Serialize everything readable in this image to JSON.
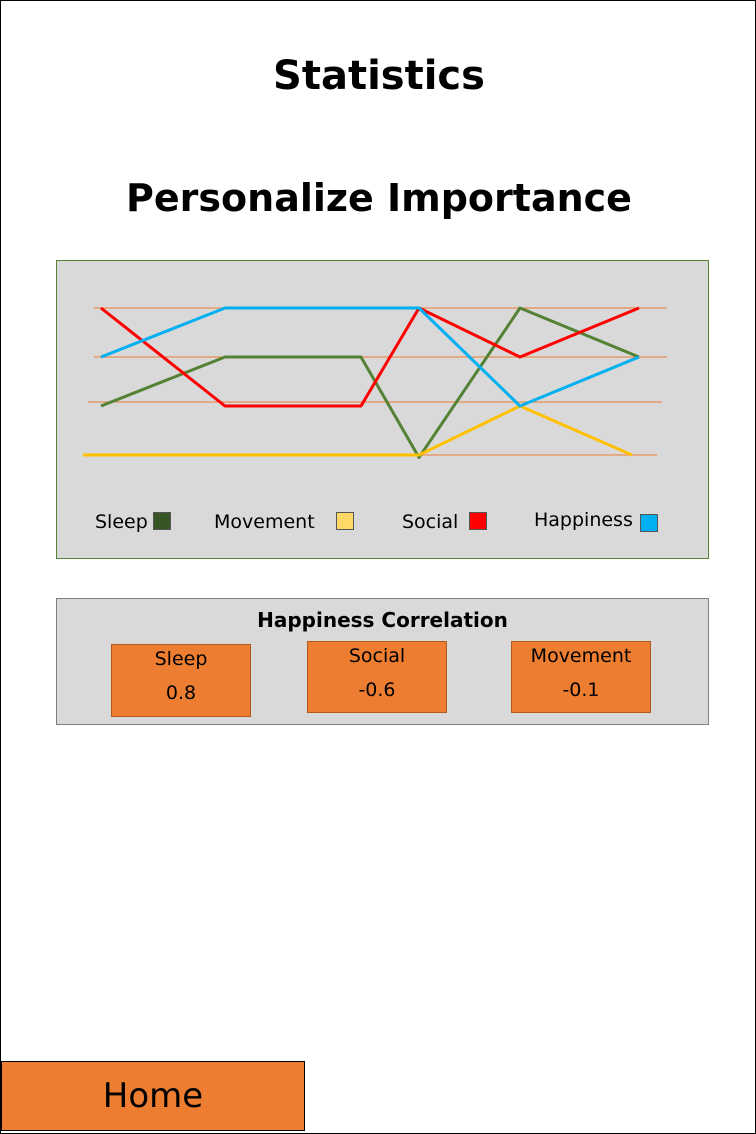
{
  "header": {
    "title": "Statistics"
  },
  "section": {
    "title": "Personalize Importance"
  },
  "chart_data": {
    "type": "line",
    "title": "",
    "x": [
      1,
      2,
      3,
      4,
      5,
      6
    ],
    "grid": true,
    "legend_position": "bottom",
    "series": [
      {
        "name": "Sleep",
        "color": "#548235",
        "values": [
          2,
          3,
          3,
          0.95,
          4,
          3
        ]
      },
      {
        "name": "Movement",
        "color": "#ffc000",
        "values": [
          1,
          1,
          1,
          1,
          2,
          1
        ]
      },
      {
        "name": "Social",
        "color": "#ff0000",
        "values": [
          4,
          2,
          2,
          4,
          3,
          4
        ]
      },
      {
        "name": "Happiness",
        "color": "#00b0f0",
        "values": [
          3,
          4,
          4,
          4,
          2,
          3
        ]
      }
    ],
    "legend": [
      {
        "label": "Sleep",
        "swatch_color": "#375623"
      },
      {
        "label": "Movement",
        "swatch_color": "#ffd966"
      },
      {
        "label": "Social",
        "swatch_color": "#ff0000"
      },
      {
        "label": "Happiness",
        "swatch_color": "#00b0f0"
      }
    ]
  },
  "correlation": {
    "title": "Happiness Correlation",
    "cards": [
      {
        "label": "Sleep",
        "value": "0.8"
      },
      {
        "label": "Social",
        "value": "-0.6"
      },
      {
        "label": "Movement",
        "value": "-0.1"
      }
    ]
  },
  "nav": {
    "home_label": "Home"
  }
}
